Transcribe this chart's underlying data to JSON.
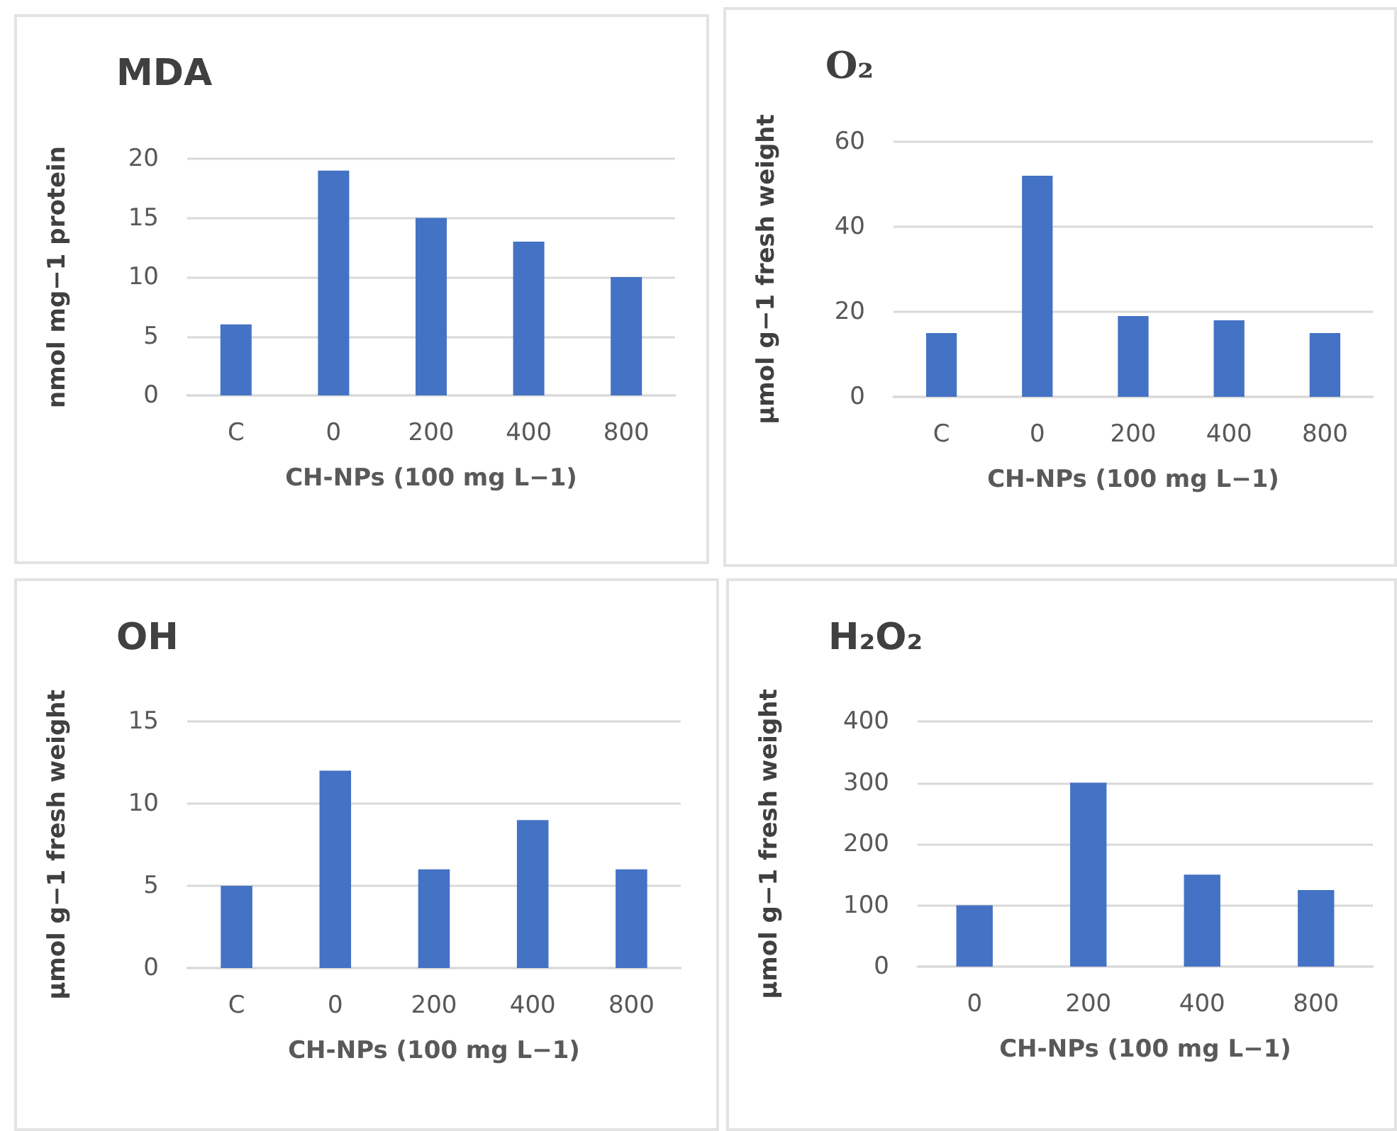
{
  "chart_data": [
    {
      "type": "bar",
      "title": "MDA",
      "xlabel": "CH-NPs (100 mg L−1)",
      "ylabel": "nmol mg−1 protein",
      "categories": [
        "C",
        "0",
        "200",
        "400",
        "800"
      ],
      "values": [
        6,
        19,
        15,
        13,
        10
      ],
      "color": "#4472c4",
      "ylim": [
        0,
        20
      ],
      "yticks": [
        0,
        5,
        10,
        15,
        20
      ],
      "grid": "y"
    },
    {
      "type": "bar",
      "title": "O₂",
      "xlabel": "CH-NPs (100 mg L−1)",
      "ylabel": "µmol g−1 fresh weight",
      "categories": [
        "C",
        "0",
        "200",
        "400",
        "800"
      ],
      "values": [
        15,
        52,
        19,
        18,
        15
      ],
      "color": "#4472c4",
      "ylim": [
        0,
        60
      ],
      "yticks": [
        0,
        20,
        40,
        60
      ],
      "grid": "y"
    },
    {
      "type": "bar",
      "title": "OH",
      "xlabel": "CH-NPs (100 mg L−1)",
      "ylabel": "µmol g−1 fresh weight",
      "categories": [
        "C",
        "0",
        "200",
        "400",
        "800"
      ],
      "values": [
        5,
        12,
        6,
        9,
        6
      ],
      "color": "#4472c4",
      "ylim": [
        0,
        15
      ],
      "yticks": [
        0,
        5,
        10,
        15
      ],
      "grid": "y"
    },
    {
      "type": "bar",
      "title": "H₂O₂",
      "xlabel": "CH-NPs (100 mg L−1)",
      "ylabel": "µmol g−1 fresh weight",
      "categories": [
        "0",
        "200",
        "400",
        "800"
      ],
      "values": [
        100,
        300,
        150,
        125
      ],
      "color": "#4472c4",
      "ylim": [
        0,
        400
      ],
      "yticks": [
        0,
        100,
        200,
        300,
        400
      ],
      "grid": "y"
    }
  ]
}
